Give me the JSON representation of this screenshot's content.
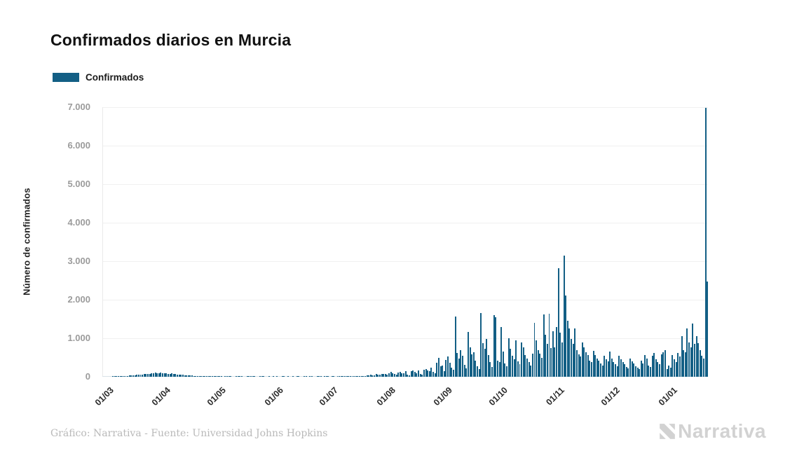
{
  "page": {
    "title": "Confirmados diarios en Murcia",
    "footer_credit": "Gráfico: Narrativa - Fuente: Universidad Johns Hopkins",
    "brand": "Narrativa"
  },
  "legend": {
    "label": "Confirmados",
    "color": "#135f85"
  },
  "chart_data": {
    "type": "bar",
    "title": "Confirmados diarios en Murcia",
    "series_name": "Confirmados",
    "xlabel": "",
    "ylabel": "Número de confirmados",
    "bar_color": "#135f85",
    "grid": true,
    "legend_position": "top-left",
    "ylim": [
      0,
      7000
    ],
    "yticks": [
      0,
      1000,
      2000,
      3000,
      4000,
      5000,
      6000,
      7000
    ],
    "ytick_labels": [
      "0",
      "1.000",
      "2.000",
      "3.000",
      "4.000",
      "5.000",
      "6.000",
      "7.000"
    ],
    "xtick_labels": [
      "01/03",
      "01/04",
      "01/05",
      "01/06",
      "01/07",
      "01/08",
      "01/09",
      "01/10",
      "01/11",
      "01/12",
      "01/01"
    ],
    "xtick_day_indices": [
      0,
      31,
      61,
      92,
      122,
      153,
      184,
      214,
      245,
      275,
      306
    ],
    "start_date": "01/03/2020",
    "frequency": "daily",
    "values": [
      0,
      0,
      0,
      0,
      0,
      2,
      3,
      5,
      8,
      12,
      15,
      20,
      18,
      25,
      30,
      35,
      40,
      45,
      50,
      55,
      60,
      48,
      65,
      70,
      75,
      80,
      90,
      100,
      110,
      95,
      85,
      105,
      98,
      90,
      85,
      80,
      75,
      85,
      70,
      65,
      60,
      55,
      50,
      58,
      45,
      40,
      35,
      30,
      28,
      25,
      22,
      20,
      18,
      15,
      12,
      10,
      8,
      10,
      6,
      5,
      4,
      8,
      5,
      3,
      2,
      0,
      2,
      10,
      4,
      2,
      0,
      0,
      3,
      12,
      6,
      2,
      0,
      0,
      2,
      8,
      10,
      4,
      2,
      0,
      0,
      2,
      4,
      2,
      0,
      0,
      2,
      0,
      3,
      0,
      2,
      0,
      0,
      4,
      2,
      0,
      3,
      0,
      0,
      2,
      0,
      4,
      2,
      0,
      0,
      3,
      2,
      0,
      5,
      2,
      0,
      0,
      3,
      2,
      4,
      0,
      2,
      6,
      2,
      0,
      4,
      2,
      0,
      6,
      3,
      2,
      8,
      4,
      2,
      10,
      6,
      4,
      12,
      8,
      15,
      10,
      18,
      25,
      20,
      35,
      30,
      60,
      45,
      40,
      70,
      55,
      50,
      65,
      75,
      80,
      60,
      90,
      120,
      100,
      70,
      50,
      110,
      130,
      95,
      85,
      140,
      60,
      40,
      150,
      160,
      120,
      100,
      170,
      80,
      60,
      180,
      200,
      160,
      140,
      230,
      120,
      90,
      360,
      500,
      280,
      300,
      150,
      430,
      520,
      360,
      240,
      180,
      1570,
      620,
      480,
      700,
      540,
      310,
      220,
      1170,
      760,
      580,
      640,
      410,
      280,
      200,
      1650,
      880,
      720,
      980,
      560,
      380,
      260,
      1600,
      1550,
      420,
      380,
      1290,
      650,
      350,
      280,
      1000,
      720,
      540,
      460,
      950,
      400,
      330,
      900,
      760,
      560,
      480,
      380,
      300,
      600,
      1400,
      950,
      700,
      600,
      500,
      1620,
      1100,
      850,
      1630,
      750,
      1180,
      760,
      1300,
      2820,
      1150,
      900,
      3150,
      2110,
      1450,
      1250,
      980,
      850,
      1250,
      700,
      580,
      520,
      900,
      760,
      640,
      560,
      420,
      380,
      680,
      560,
      480,
      420,
      350,
      300,
      550,
      460,
      400,
      650,
      480,
      380,
      320,
      280,
      550,
      450,
      380,
      330,
      260,
      220,
      480,
      400,
      340,
      280,
      240,
      200,
      420,
      350,
      560,
      480,
      300,
      260,
      540,
      620,
      460,
      380,
      330,
      580,
      640,
      700,
      200,
      300,
      230,
      570,
      450,
      380,
      620,
      520,
      1050,
      700,
      640,
      1250,
      900,
      760,
      1390,
      850,
      1050,
      880,
      700,
      550,
      480,
      6990,
      2480
    ]
  }
}
